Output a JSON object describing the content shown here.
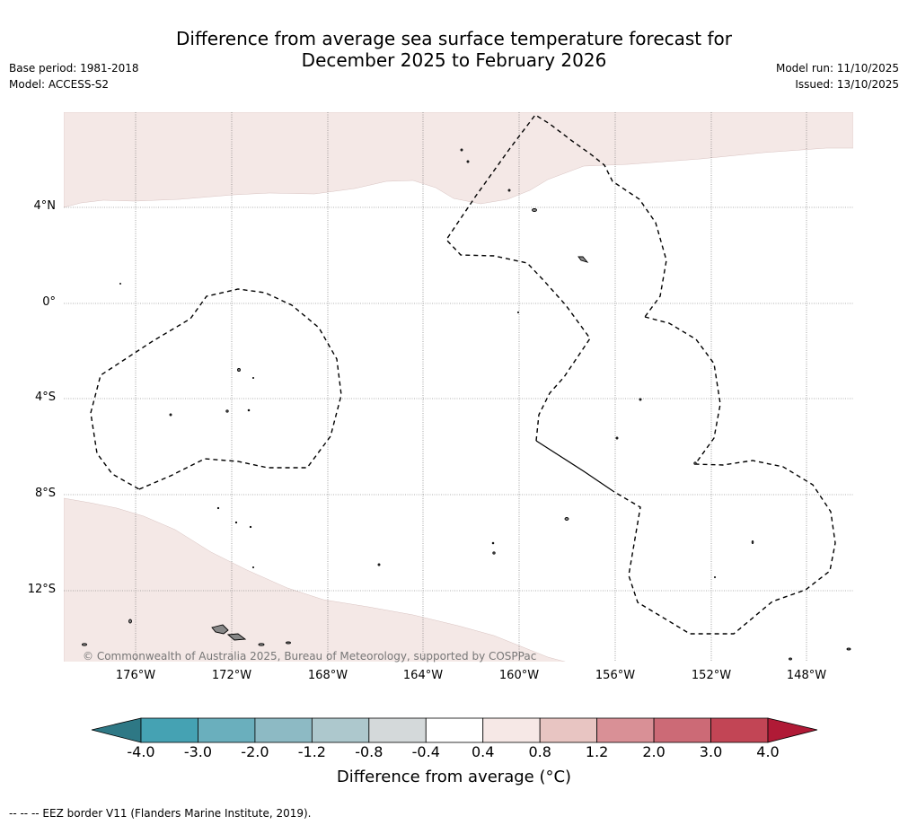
{
  "title": {
    "line1": "Difference from average sea surface temperature forecast for",
    "line2": "December 2025 to February 2026"
  },
  "meta": {
    "base_period": "Base period: 1981-2018",
    "model": "Model: ACCESS-S2",
    "model_run": "Model run: 11/10/2025",
    "issued": "Issued: 13/10/2025"
  },
  "map": {
    "lat_labels": [
      "4°N",
      "0°",
      "4°S",
      "8°S",
      "12°S"
    ],
    "lon_labels": [
      "176°W",
      "172°W",
      "168°W",
      "164°W",
      "160°W",
      "156°W",
      "152°W",
      "148°W"
    ],
    "copyright": "© Commonwealth of Australia 2025, Bureau of Meteorology, supported by COSPPac"
  },
  "colorbar": {
    "ticks": [
      "-4.0",
      "-3.0",
      "-2.0",
      "-1.2",
      "-0.8",
      "-0.4",
      "0.4",
      "0.8",
      "1.2",
      "2.0",
      "3.0",
      "4.0"
    ],
    "colors": [
      "#45a2b3",
      "#6aafbd",
      "#8dbac4",
      "#adc8cd",
      "#d4d9da",
      "#ffffff",
      "#f6e8e6",
      "#e8c5c2",
      "#d99096",
      "#cc6a76",
      "#c24555"
    ],
    "extend_low_color": "#2e7885",
    "extend_high_color": "#b01a36",
    "label": "Difference from average (°C)"
  },
  "footer": "-- -- -- EEZ border V11 (Flanders Marine Institute, 2019)."
}
